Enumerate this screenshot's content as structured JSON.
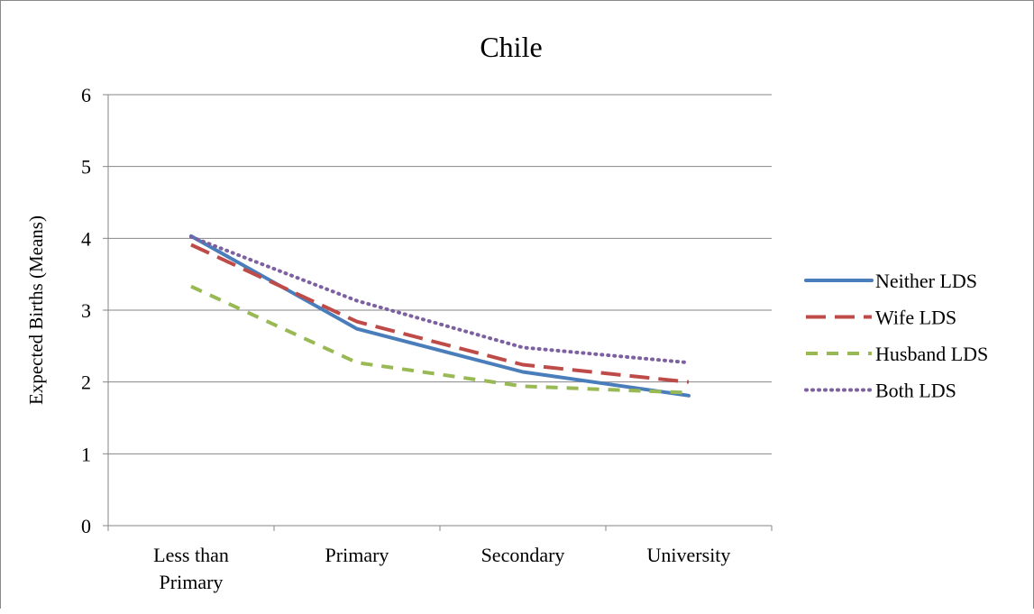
{
  "chart_data": {
    "type": "line",
    "title": "Chile",
    "ylabel": "Expected Births (Means)",
    "xlabel": "",
    "ylim": [
      0,
      6
    ],
    "yticks": [
      0,
      1,
      2,
      3,
      4,
      5,
      6
    ],
    "grid": true,
    "legend_position": "right",
    "categories": [
      [
        "Less than",
        "Primary"
      ],
      [
        "Primary"
      ],
      [
        "Secondary"
      ],
      [
        "University"
      ]
    ],
    "series": [
      {
        "name": "Neither LDS",
        "color": "#4A7EBB",
        "dash": "solid",
        "values": [
          4.03,
          2.74,
          2.14,
          1.81
        ]
      },
      {
        "name": "Wife LDS",
        "color": "#BE4B48",
        "dash": "long-dash",
        "values": [
          3.91,
          2.84,
          2.24,
          2.0
        ]
      },
      {
        "name": "Husband LDS",
        "color": "#98B954",
        "dash": "dash",
        "values": [
          3.33,
          2.27,
          1.94,
          1.85
        ]
      },
      {
        "name": "Both LDS",
        "color": "#7D60A0",
        "dash": "dot",
        "values": [
          4.02,
          3.13,
          2.48,
          2.27
        ]
      }
    ]
  }
}
